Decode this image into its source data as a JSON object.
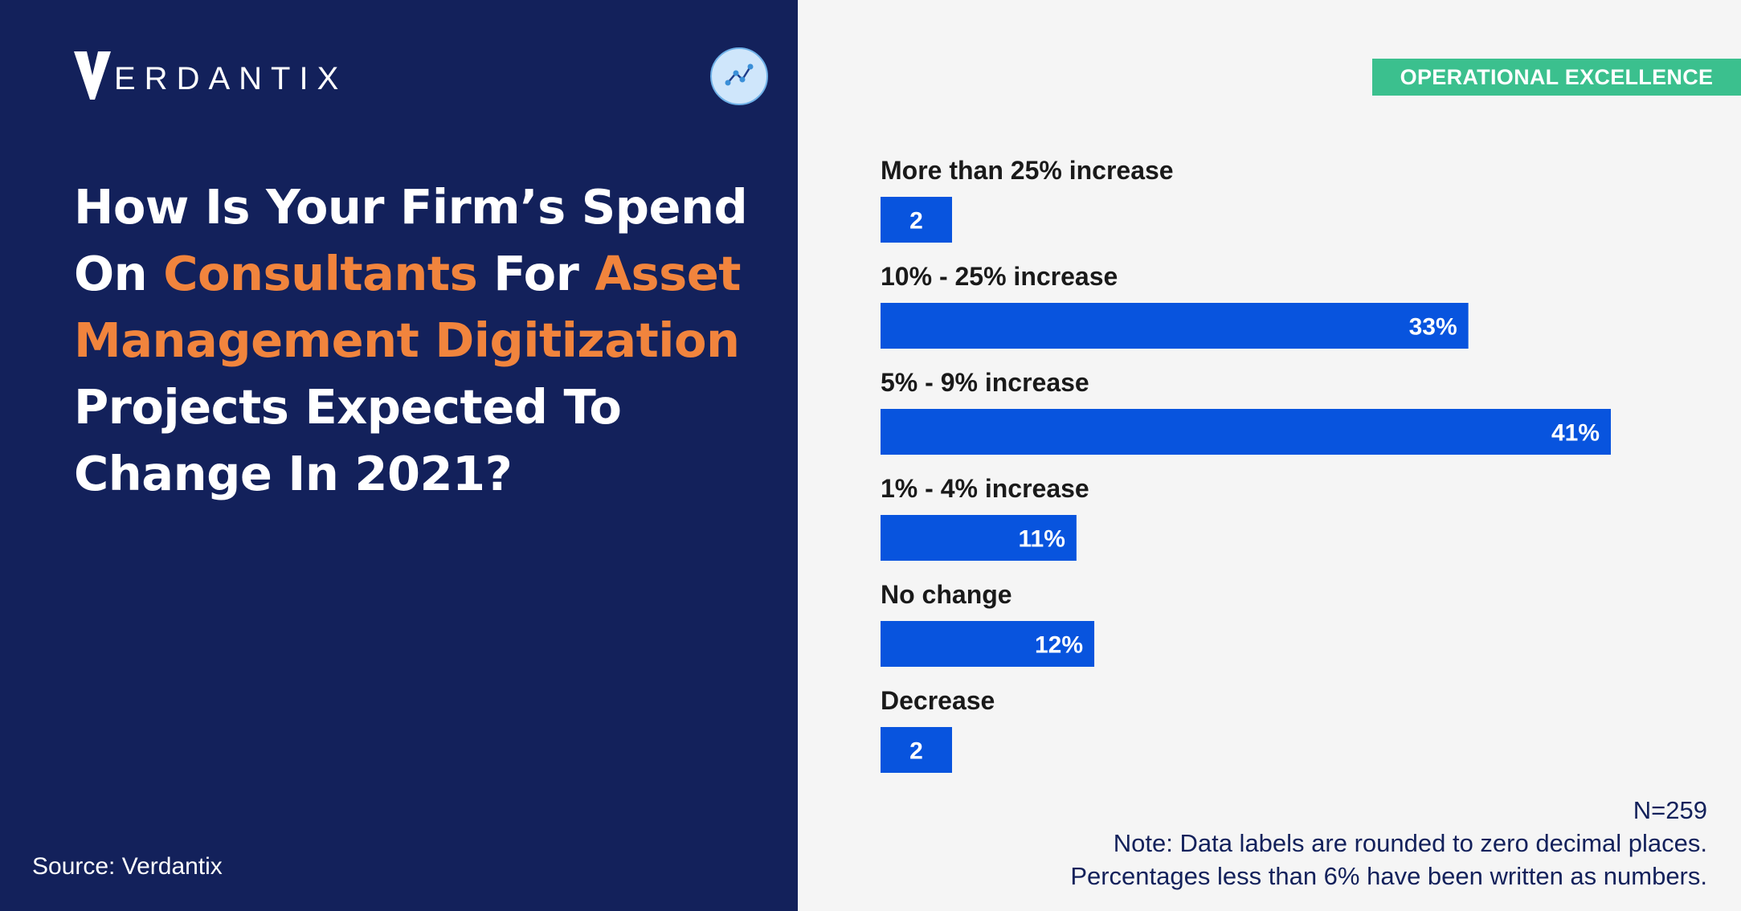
{
  "brand": {
    "name": "VERDANTIX",
    "logo_initial": "V",
    "logo_rest": "ERDANTIX"
  },
  "icons": {
    "brand_logo": "verdantix-v-logo",
    "badge": "line-chart-icon"
  },
  "headline": {
    "parts": [
      {
        "text": "How Is Your Firm’s Spend On ",
        "highlight": false
      },
      {
        "text": "Consultants",
        "highlight": true
      },
      {
        "text": " For ",
        "highlight": false
      },
      {
        "text": "Asset Management Digitization",
        "highlight": true
      },
      {
        "text": " Projects Expected To Change In 2021?",
        "highlight": false
      }
    ]
  },
  "source": "Source: Verdantix",
  "tag": "OPERATIONAL EXCELLENCE",
  "colors": {
    "panel": "#13215b",
    "highlight": "#f1843d",
    "bar": "#0854de",
    "tag": "#3bc08e",
    "background": "#f5f5f5"
  },
  "chart_data": {
    "type": "bar",
    "orientation": "horizontal",
    "categories": [
      "More than 25% increase",
      "10% - 25% increase",
      "5% - 9% increase",
      "1% - 4% increase",
      "No change",
      "Decrease"
    ],
    "values": [
      2,
      33,
      41,
      11,
      12,
      2
    ],
    "data_labels": [
      "2",
      "33%",
      "41%",
      "11%",
      "12%",
      "2"
    ],
    "unit": "%",
    "xlim": [
      0,
      41
    ],
    "grid": false,
    "legend": "none"
  },
  "notes": {
    "n": "N=259",
    "line1": "Note: Data labels are rounded to zero decimal places.",
    "line2": "Percentages less than 6% have been written as numbers."
  }
}
